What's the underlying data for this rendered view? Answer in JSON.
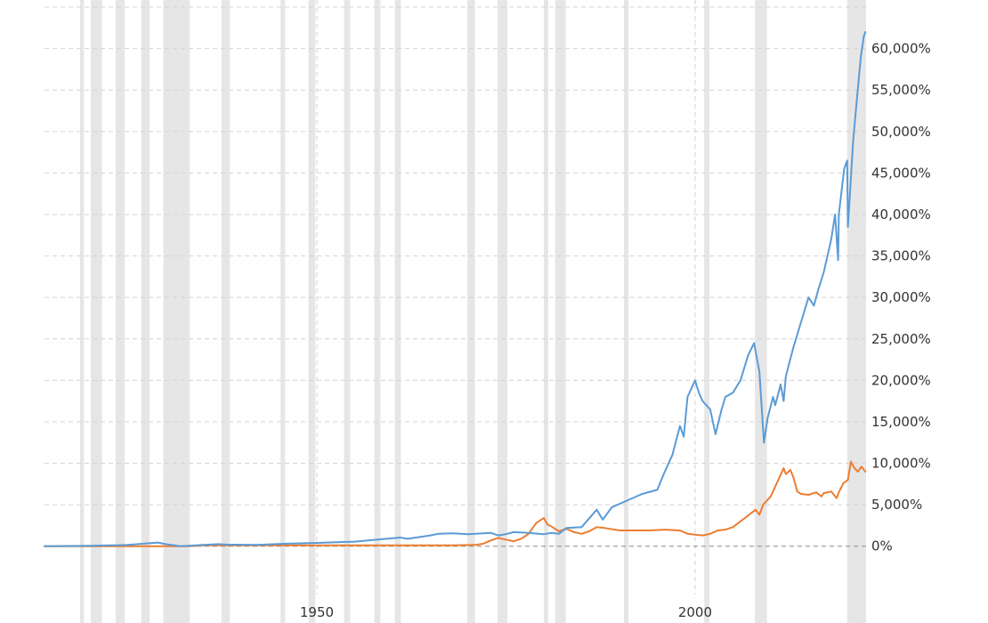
{
  "chart_data": {
    "type": "line",
    "title": "",
    "xlabel": "",
    "ylabel": "",
    "xlim": [
      1914.0,
      2022.6
    ],
    "ylim": [
      -5500,
      65000
    ],
    "grid": true,
    "x_ticks": [
      {
        "value": 1950,
        "label": "1950"
      },
      {
        "value": 2000,
        "label": "2000"
      }
    ],
    "y_ticks": [
      {
        "value": 60000,
        "label": "60,000%"
      },
      {
        "value": 55000,
        "label": "55,000%"
      },
      {
        "value": 50000,
        "label": "50,000%"
      },
      {
        "value": 45000,
        "label": "45,000%"
      },
      {
        "value": 40000,
        "label": "40,000%"
      },
      {
        "value": 35000,
        "label": "35,000%"
      },
      {
        "value": 30000,
        "label": "30,000%"
      },
      {
        "value": 25000,
        "label": "25,000%"
      },
      {
        "value": 20000,
        "label": "20,000%"
      },
      {
        "value": 15000,
        "label": "15,000%"
      },
      {
        "value": 10000,
        "label": "10,000%"
      },
      {
        "value": 5000,
        "label": "5,000%"
      },
      {
        "value": 0,
        "label": "0%"
      }
    ],
    "recessions": [
      [
        1918.7,
        1919.2
      ],
      [
        1920.1,
        1921.6
      ],
      [
        1923.4,
        1924.6
      ],
      [
        1926.8,
        1927.9
      ],
      [
        1929.7,
        1933.2
      ],
      [
        1937.4,
        1938.5
      ],
      [
        1945.2,
        1945.8
      ],
      [
        1948.9,
        1949.8
      ],
      [
        1953.6,
        1954.4
      ],
      [
        1957.6,
        1958.4
      ],
      [
        1960.3,
        1961.1
      ],
      [
        1969.9,
        1970.9
      ],
      [
        1973.9,
        1975.2
      ],
      [
        1980.0,
        1980.6
      ],
      [
        1981.5,
        1982.9
      ],
      [
        1990.6,
        1991.2
      ],
      [
        2001.2,
        2001.9
      ],
      [
        2007.9,
        2009.5
      ],
      [
        2020.1,
        2022.6
      ]
    ],
    "series": [
      {
        "color": "#5b9bd5",
        "points": [
          [
            1914,
            0
          ],
          [
            1920,
            50
          ],
          [
            1925,
            150
          ],
          [
            1929,
            450
          ],
          [
            1930,
            250
          ],
          [
            1932,
            0
          ],
          [
            1935,
            150
          ],
          [
            1937,
            250
          ],
          [
            1938,
            200
          ],
          [
            1942,
            150
          ],
          [
            1946,
            300
          ],
          [
            1950,
            400
          ],
          [
            1955,
            550
          ],
          [
            1958,
            800
          ],
          [
            1961,
            1050
          ],
          [
            1962,
            900
          ],
          [
            1965,
            1300
          ],
          [
            1966,
            1500
          ],
          [
            1968,
            1550
          ],
          [
            1970,
            1450
          ],
          [
            1973,
            1600
          ],
          [
            1974,
            1300
          ],
          [
            1975,
            1450
          ],
          [
            1976,
            1700
          ],
          [
            1978,
            1600
          ],
          [
            1980,
            1450
          ],
          [
            1981,
            1600
          ],
          [
            1982,
            1500
          ],
          [
            1983,
            2200
          ],
          [
            1985,
            2300
          ],
          [
            1987,
            4400
          ],
          [
            1987.8,
            3200
          ],
          [
            1989,
            4700
          ],
          [
            1991,
            5500
          ],
          [
            1993,
            6300
          ],
          [
            1995,
            6800
          ],
          [
            1996,
            9000
          ],
          [
            1997,
            11000
          ],
          [
            1998,
            14500
          ],
          [
            1998.5,
            13200
          ],
          [
            1999,
            18000
          ],
          [
            2000,
            20000
          ],
          [
            2000.5,
            18500
          ],
          [
            2001,
            17500
          ],
          [
            2002,
            16500
          ],
          [
            2002.7,
            13500
          ],
          [
            2003.5,
            16500
          ],
          [
            2004,
            18000
          ],
          [
            2005,
            18500
          ],
          [
            2006,
            20000
          ],
          [
            2007,
            23000
          ],
          [
            2007.8,
            24500
          ],
          [
            2008.5,
            21000
          ],
          [
            2009.1,
            12500
          ],
          [
            2009.6,
            15500
          ],
          [
            2010.3,
            18000
          ],
          [
            2010.6,
            17000
          ],
          [
            2011.3,
            19500
          ],
          [
            2011.7,
            17500
          ],
          [
            2012,
            20500
          ],
          [
            2013,
            24000
          ],
          [
            2014,
            27000
          ],
          [
            2015,
            30000
          ],
          [
            2015.7,
            29000
          ],
          [
            2016.3,
            31000
          ],
          [
            2017,
            33000
          ],
          [
            2018,
            37000
          ],
          [
            2018.5,
            40000
          ],
          [
            2018.9,
            34500
          ],
          [
            2019,
            40000
          ],
          [
            2019.7,
            45500
          ],
          [
            2020.1,
            46500
          ],
          [
            2020.2,
            38500
          ],
          [
            2020.5,
            43000
          ],
          [
            2020.9,
            49000
          ],
          [
            2021.4,
            54000
          ],
          [
            2021.9,
            59000
          ],
          [
            2022.3,
            61500
          ],
          [
            2022.5,
            62000
          ]
        ]
      },
      {
        "color": "#ed7d31",
        "points": [
          [
            1914,
            0
          ],
          [
            1930,
            0
          ],
          [
            1933,
            0
          ],
          [
            1935,
            100
          ],
          [
            1945,
            100
          ],
          [
            1960,
            100
          ],
          [
            1968,
            100
          ],
          [
            1971,
            150
          ],
          [
            1972,
            300
          ],
          [
            1973,
            700
          ],
          [
            1974,
            1000
          ],
          [
            1975,
            800
          ],
          [
            1976,
            600
          ],
          [
            1977,
            900
          ],
          [
            1978,
            1500
          ],
          [
            1979,
            2800
          ],
          [
            1980,
            3400
          ],
          [
            1980.5,
            2600
          ],
          [
            1981,
            2400
          ],
          [
            1982,
            1800
          ],
          [
            1983,
            2100
          ],
          [
            1984,
            1700
          ],
          [
            1985,
            1500
          ],
          [
            1986,
            1800
          ],
          [
            1987,
            2300
          ],
          [
            1988,
            2200
          ],
          [
            1990,
            1900
          ],
          [
            1994,
            1900
          ],
          [
            1996,
            2000
          ],
          [
            1998,
            1900
          ],
          [
            1999,
            1500
          ],
          [
            2000,
            1400
          ],
          [
            2001,
            1300
          ],
          [
            2002,
            1500
          ],
          [
            2003,
            1900
          ],
          [
            2004,
            2000
          ],
          [
            2005,
            2300
          ],
          [
            2006,
            3000
          ],
          [
            2007,
            3700
          ],
          [
            2008,
            4400
          ],
          [
            2008.5,
            3800
          ],
          [
            2009,
            5000
          ],
          [
            2010,
            6000
          ],
          [
            2011,
            8000
          ],
          [
            2011.7,
            9400
          ],
          [
            2012,
            8700
          ],
          [
            2012.6,
            9200
          ],
          [
            2013,
            8300
          ],
          [
            2013.5,
            6600
          ],
          [
            2014,
            6300
          ],
          [
            2015,
            6200
          ],
          [
            2016,
            6500
          ],
          [
            2016.7,
            6000
          ],
          [
            2017,
            6400
          ],
          [
            2018,
            6600
          ],
          [
            2018.7,
            5800
          ],
          [
            2019,
            6500
          ],
          [
            2019.6,
            7600
          ],
          [
            2020.2,
            8000
          ],
          [
            2020.6,
            10200
          ],
          [
            2021,
            9500
          ],
          [
            2021.5,
            9000
          ],
          [
            2022,
            9600
          ],
          [
            2022.5,
            9000
          ]
        ]
      }
    ]
  }
}
